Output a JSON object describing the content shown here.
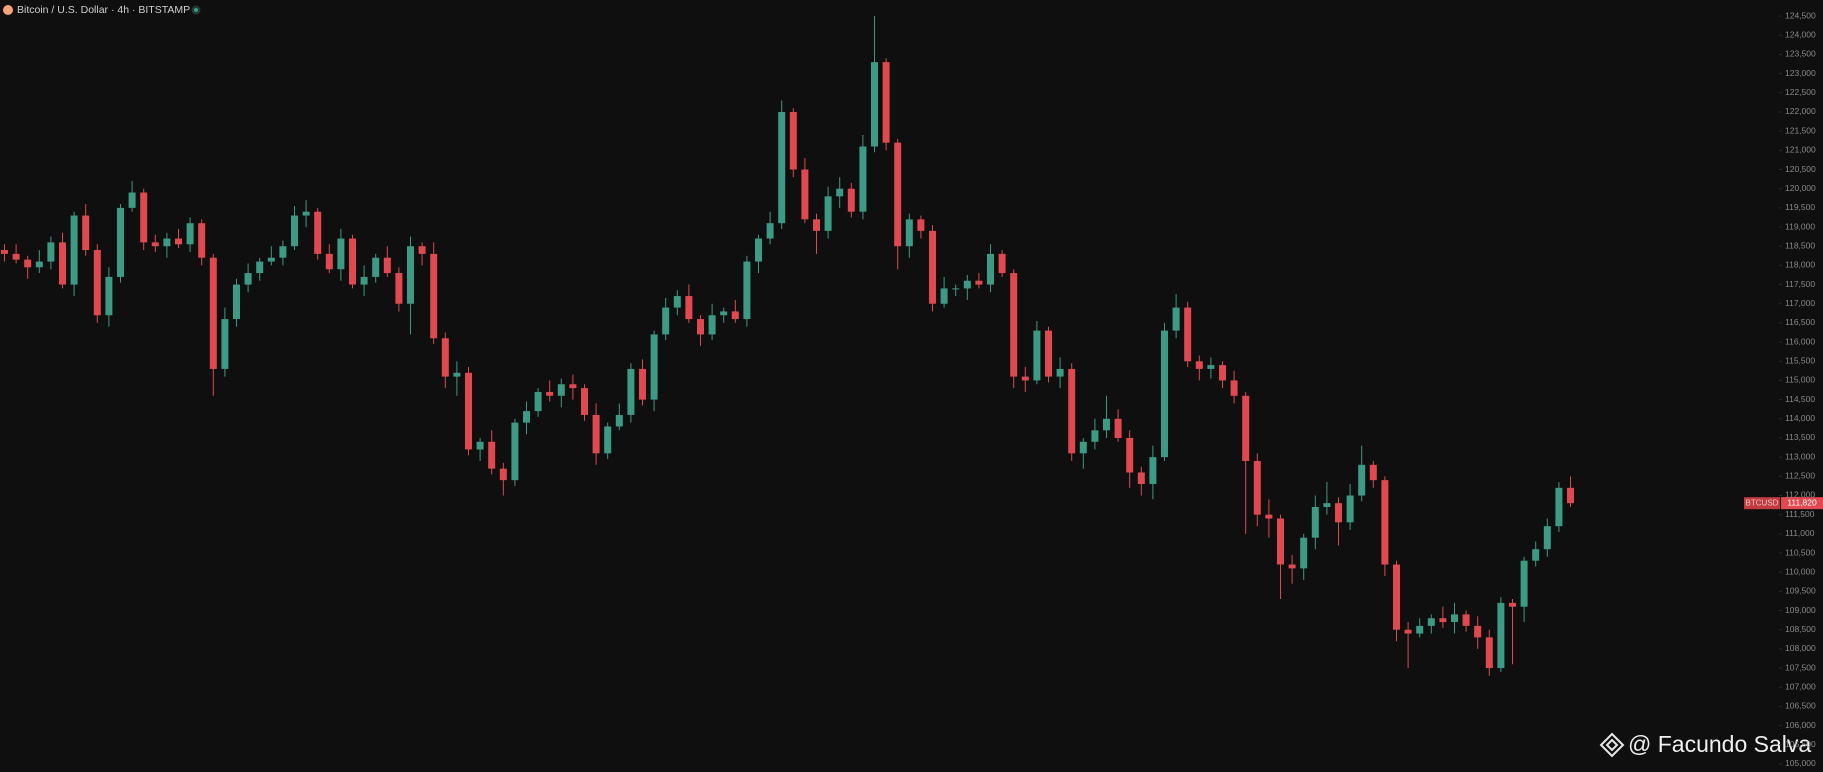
{
  "chart_data": {
    "type": "candlestick",
    "title": "Bitcoin / U.S. Dollar · 4h · BITSTAMP",
    "up_color": "#3d9a84",
    "down_color": "#e0494f",
    "ylim": [
      104790,
      124920
    ],
    "yticks": [
      {
        "value": 105000,
        "label": "105,000"
      },
      {
        "value": 105500,
        "label": "105,500"
      },
      {
        "value": 106000,
        "label": "106,000"
      },
      {
        "value": 106500,
        "label": "106,500"
      },
      {
        "value": 107000,
        "label": "107,000"
      },
      {
        "value": 107500,
        "label": "107,500"
      },
      {
        "value": 108000,
        "label": "108,000"
      },
      {
        "value": 108500,
        "label": "108,500"
      },
      {
        "value": 109000,
        "label": "109,000"
      },
      {
        "value": 109500,
        "label": "109,500"
      },
      {
        "value": 110000,
        "label": "110,000"
      },
      {
        "value": 110500,
        "label": "110,500"
      },
      {
        "value": 111000,
        "label": "111,000"
      },
      {
        "value": 111500,
        "label": "111,500"
      },
      {
        "value": 112000,
        "label": "112,000"
      },
      {
        "value": 112500,
        "label": "112,500"
      },
      {
        "value": 113000,
        "label": "113,000"
      },
      {
        "value": 113500,
        "label": "113,500"
      },
      {
        "value": 114000,
        "label": "114,000"
      },
      {
        "value": 114500,
        "label": "114,500"
      },
      {
        "value": 115000,
        "label": "115,000"
      },
      {
        "value": 115500,
        "label": "115,500"
      },
      {
        "value": 116000,
        "label": "116,000"
      },
      {
        "value": 116500,
        "label": "116,500"
      },
      {
        "value": 117000,
        "label": "117,000"
      },
      {
        "value": 117500,
        "label": "117,500"
      },
      {
        "value": 118000,
        "label": "118,000"
      },
      {
        "value": 118500,
        "label": "118,500"
      },
      {
        "value": 119000,
        "label": "119,000"
      },
      {
        "value": 119500,
        "label": "119,500"
      },
      {
        "value": 120000,
        "label": "120,000"
      },
      {
        "value": 120500,
        "label": "120,500"
      },
      {
        "value": 121000,
        "label": "121,000"
      },
      {
        "value": 121500,
        "label": "121,500"
      },
      {
        "value": 122000,
        "label": "122,000"
      },
      {
        "value": 122500,
        "label": "122,500"
      },
      {
        "value": 123000,
        "label": "123,000"
      },
      {
        "value": 123500,
        "label": "123,500"
      },
      {
        "value": 124000,
        "label": "124,000"
      },
      {
        "value": 124500,
        "label": "124,500"
      }
    ],
    "open": [
      118400,
      118300,
      118150,
      117950,
      118100,
      118600,
      117500,
      119300,
      118400,
      116700,
      117700,
      119500,
      119900,
      118600,
      118500,
      118700,
      118550,
      119100,
      118200,
      115300,
      116600,
      117500,
      117800,
      118100,
      118200,
      118500,
      119300,
      119400,
      118300,
      117900,
      118700,
      117500,
      117700,
      118200,
      117800,
      117000,
      118500,
      118300,
      116100,
      115100,
      115200,
      113200,
      113400,
      112700,
      112400,
      113900,
      114200,
      114700,
      114600,
      114900,
      114800,
      114100,
      113100,
      113800,
      114100,
      115300,
      114500,
      116200,
      116900,
      117200,
      116600,
      116200,
      116700,
      116800,
      116600,
      118100,
      118700,
      119100,
      122000,
      120500,
      119200,
      118900,
      119800,
      120000,
      119400,
      121100,
      123300,
      121200,
      118500,
      119200,
      118900,
      117000,
      117400,
      117400,
      117600,
      117500,
      118300,
      117800,
      115100,
      115000,
      116300,
      115100,
      115300,
      113100,
      113400,
      113700,
      114000,
      113500,
      112600,
      112300,
      113000,
      116300,
      116900,
      115500,
      115300,
      115400,
      115000,
      114600,
      112900,
      111500,
      111400,
      110200,
      110100,
      110900,
      111700,
      111800,
      111300,
      112000,
      112800,
      112400,
      110200,
      108500,
      108400,
      108600,
      108800,
      108700,
      108900,
      108600,
      108300,
      107500,
      109200,
      109100,
      110300,
      110600,
      111200,
      112200
    ],
    "high": [
      118550,
      118550,
      118250,
      118400,
      118750,
      118850,
      119400,
      119600,
      118550,
      117950,
      119600,
      120200,
      120000,
      118800,
      118850,
      118950,
      119250,
      119200,
      118300,
      116900,
      117650,
      118050,
      118200,
      118500,
      118650,
      119550,
      119700,
      119500,
      118550,
      118950,
      118800,
      118000,
      118300,
      118500,
      117950,
      118750,
      118600,
      118600,
      116250,
      115500,
      115350,
      113500,
      113700,
      112850,
      114000,
      114450,
      114800,
      115000,
      115050,
      115150,
      114900,
      114400,
      113900,
      114400,
      115450,
      115550,
      116300,
      117150,
      117350,
      117500,
      116700,
      117000,
      116900,
      117100,
      118250,
      118800,
      119400,
      122300,
      122100,
      120800,
      119350,
      120050,
      120300,
      120150,
      121400,
      124500,
      123400,
      121300,
      119350,
      119300,
      119050,
      117700,
      117500,
      117750,
      117800,
      118550,
      118400,
      117900,
      115350,
      116550,
      116400,
      115600,
      115450,
      113500,
      114000,
      114600,
      114250,
      113700,
      112750,
      113300,
      116500,
      117250,
      117050,
      115650,
      115600,
      115500,
      115250,
      114700,
      113100,
      111900,
      111500,
      110450,
      111000,
      112000,
      112350,
      111950,
      112300,
      113300,
      112900,
      112500,
      110300,
      108700,
      108800,
      108900,
      109100,
      109200,
      109000,
      108850,
      108500,
      109350,
      109300,
      110400,
      110800,
      111400,
      112350,
      112500
    ],
    "low": [
      118100,
      118050,
      117650,
      117800,
      117900,
      117400,
      117200,
      118250,
      116500,
      116400,
      117550,
      119400,
      118400,
      118350,
      118200,
      118450,
      118350,
      118000,
      114600,
      115100,
      116400,
      117300,
      117600,
      118000,
      118000,
      118400,
      119000,
      118150,
      117800,
      117600,
      117400,
      117200,
      117550,
      117700,
      116800,
      116200,
      118000,
      115950,
      114800,
      114600,
      113050,
      112900,
      112550,
      112000,
      112250,
      113600,
      114050,
      114450,
      114300,
      114500,
      113950,
      112800,
      112950,
      113700,
      113900,
      114350,
      114200,
      116050,
      116700,
      116500,
      115900,
      116050,
      116500,
      116500,
      116400,
      117800,
      118550,
      118950,
      120300,
      119100,
      118300,
      118700,
      119500,
      119250,
      119200,
      120950,
      121000,
      117900,
      118200,
      118700,
      116800,
      116900,
      117200,
      117100,
      117400,
      117300,
      117700,
      114800,
      114700,
      114900,
      114950,
      114800,
      112900,
      112700,
      113200,
      113500,
      113400,
      112200,
      112000,
      111900,
      112900,
      116100,
      115350,
      115000,
      115050,
      114800,
      114400,
      111000,
      111200,
      110900,
      109300,
      109700,
      109800,
      110600,
      111500,
      110700,
      111100,
      111850,
      112200,
      109900,
      108200,
      107500,
      108300,
      108400,
      108550,
      108400,
      108450,
      108000,
      107300,
      107400,
      107600,
      108700,
      110150,
      110400,
      111050,
      111700
    ],
    "close": [
      118300,
      118150,
      117950,
      118100,
      118600,
      117500,
      119300,
      118400,
      116700,
      117700,
      119500,
      119900,
      118600,
      118500,
      118700,
      118550,
      119100,
      118200,
      115300,
      116600,
      117500,
      117800,
      118100,
      118200,
      118500,
      119300,
      119400,
      118300,
      117900,
      118700,
      117500,
      117700,
      118200,
      117800,
      117000,
      118500,
      118300,
      116100,
      115100,
      115200,
      113200,
      113400,
      112700,
      112400,
      113900,
      114200,
      114700,
      114600,
      114900,
      114800,
      114100,
      113100,
      113800,
      114100,
      115300,
      114500,
      116200,
      116900,
      117200,
      116600,
      116200,
      116700,
      116800,
      116600,
      118100,
      118700,
      119100,
      122000,
      120500,
      119200,
      118900,
      119800,
      120000,
      119400,
      121100,
      123300,
      121200,
      118500,
      119200,
      118900,
      117000,
      117400,
      117400,
      117600,
      117500,
      118300,
      117800,
      115100,
      115000,
      116300,
      115100,
      115300,
      113100,
      113400,
      113700,
      114000,
      113500,
      112600,
      112300,
      113000,
      116300,
      116900,
      115500,
      115300,
      115400,
      115000,
      114600,
      112900,
      111500,
      111400,
      110200,
      110100,
      110900,
      111700,
      111800,
      111300,
      112000,
      112800,
      112400,
      110200,
      108500,
      108400,
      108600,
      108800,
      108700,
      108900,
      108600,
      108300,
      107500,
      109200,
      109100,
      110300,
      110600,
      111200,
      112200,
      111800
    ],
    "price_tag": {
      "symbol": "BTCUSD",
      "label": "111,820"
    }
  },
  "watermark": "@ Facundo Salva"
}
